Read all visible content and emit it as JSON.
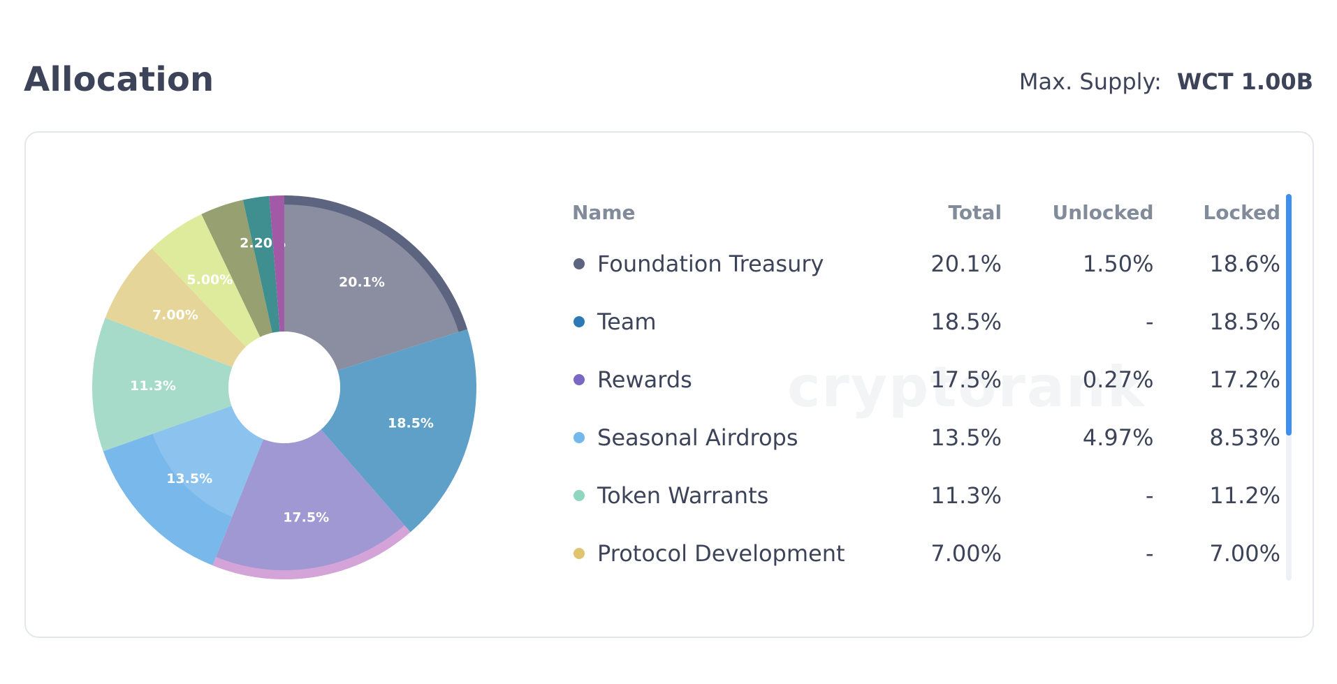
{
  "header": {
    "title": "Allocation",
    "supply_label": "Max. Supply:",
    "supply_value": "WCT 1.00B"
  },
  "watermark": "cryptorank",
  "table": {
    "headers": {
      "name": "Name",
      "total": "Total",
      "unlocked": "Unlocked",
      "locked": "Locked"
    },
    "rows": [
      {
        "name": "Foundation Treasury",
        "total": "20.1%",
        "unlocked": "1.50%",
        "locked": "18.6%",
        "dot_color": "#5c6480"
      },
      {
        "name": "Team",
        "total": "18.5%",
        "unlocked": "-",
        "locked": "18.5%",
        "dot_color": "#2c79b5"
      },
      {
        "name": "Rewards",
        "total": "17.5%",
        "unlocked": "0.27%",
        "locked": "17.2%",
        "dot_color": "#7a68c2"
      },
      {
        "name": "Seasonal Airdrops",
        "total": "13.5%",
        "unlocked": "4.97%",
        "locked": "8.53%",
        "dot_color": "#72b8ec"
      },
      {
        "name": "Token Warrants",
        "total": "11.3%",
        "unlocked": "-",
        "locked": "11.2%",
        "dot_color": "#8fd6c0"
      },
      {
        "name": "Protocol Development",
        "total": "7.00%",
        "unlocked": "-",
        "locked": "7.00%",
        "dot_color": "#dfc56f"
      }
    ]
  },
  "scrollbar": {
    "visible_fraction": 0.625
  },
  "chart_data": {
    "type": "pie",
    "donut": true,
    "categories": [
      "Foundation Treasury",
      "Team",
      "Rewards",
      "Seasonal Airdrops",
      "Token Warrants",
      "Protocol Development",
      "",
      "",
      "",
      ""
    ],
    "values": [
      20.1,
      18.5,
      17.5,
      13.5,
      11.3,
      7.0,
      5.0,
      3.65,
      2.2,
      1.25
    ],
    "labels": [
      "20.1%",
      "18.5%",
      "17.5%",
      "13.5%",
      "11.3%",
      "7.00%",
      "5.00%",
      "",
      "2.20%",
      ""
    ],
    "colors": [
      "#8a8ea0",
      "#5fa0c8",
      "#9f98d2",
      "#79b8ea",
      "#a6dac9",
      "#e6d598",
      "#dfeb9c",
      "#97a070",
      "#3f8e90",
      "#a35aa6"
    ],
    "unlocked_values": [
      1.5,
      0,
      0.27,
      4.97,
      0,
      0,
      0,
      0,
      0,
      0
    ],
    "unlocked_colors": [
      "#5c6480",
      "#5fa0c8",
      "#d4a4d8",
      "#9ccaf0",
      "#a6dac9",
      "#e6d598",
      "#dfeb9c",
      "#97a070",
      "#3f8e90",
      "#a35aa6"
    ],
    "legend": "right"
  }
}
